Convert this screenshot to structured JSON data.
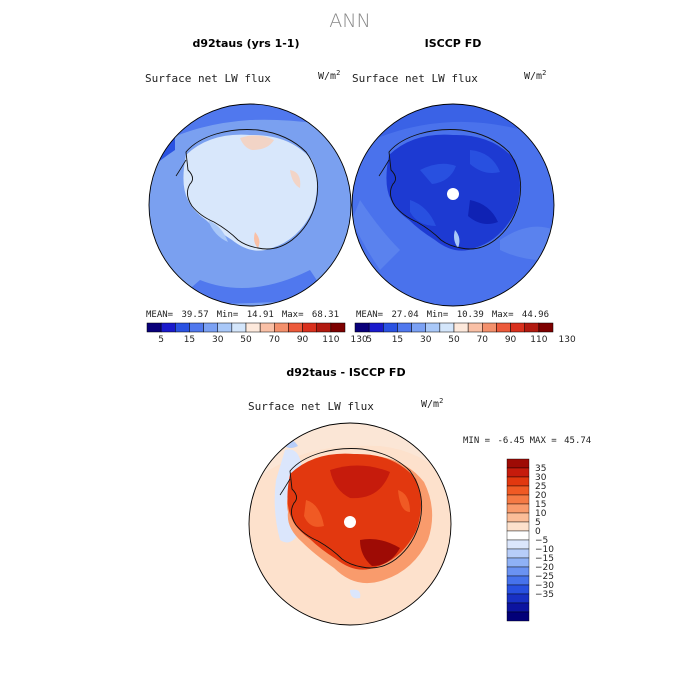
{
  "page": {
    "title": "ANN"
  },
  "panels": [
    {
      "key": "model",
      "title": "d92taus (yrs 1-1)",
      "variable": "Surface net LW flux",
      "units": "W/m",
      "units_exp": "2",
      "stats": {
        "mean_label": "MEAN=",
        "mean": "39.57",
        "min_label": "Min=",
        "min": "14.91",
        "max_label": "Max=",
        "max": "68.31"
      }
    },
    {
      "key": "obs",
      "title": "ISCCP FD",
      "variable": "Surface net LW flux",
      "units": "W/m",
      "units_exp": "2",
      "stats": {
        "mean_label": "MEAN=",
        "mean": "27.04",
        "min_label": "Min=",
        "min": "10.39",
        "max_label": "Max=",
        "max": "44.96"
      }
    },
    {
      "key": "diff",
      "title": "d92taus - ISCCP FD",
      "variable": "Surface net LW flux",
      "units": "W/m",
      "units_exp": "2",
      "stats": {
        "min_label": "MIN =",
        "min": "-6.45",
        "max_label": "MAX =",
        "max": "45.74"
      }
    }
  ],
  "chart_data": [
    {
      "type": "heatmap",
      "title": "d92taus (yrs 1-1)",
      "projection": "south-polar-stereographic",
      "variable": "Surface net LW flux",
      "units": "W/m2",
      "stats": {
        "mean": 39.57,
        "min": 14.91,
        "max": 68.31
      },
      "colorbar": {
        "orientation": "horizontal",
        "tick_labels": [
          "5",
          "15",
          "30",
          "50",
          "70",
          "90",
          "110",
          "130"
        ],
        "colors": [
          "#09007a",
          "#1a1acc",
          "#2a52e2",
          "#5078ee",
          "#7ba1f4",
          "#a9c8f8",
          "#d4e6fb",
          "#fde9dc",
          "#f9c0a6",
          "#f3906c",
          "#ec5a3b",
          "#d9301d",
          "#b21a10",
          "#7d0000"
        ]
      }
    },
    {
      "type": "heatmap",
      "title": "ISCCP FD",
      "projection": "south-polar-stereographic",
      "variable": "Surface net LW flux",
      "units": "W/m2",
      "stats": {
        "mean": 27.04,
        "min": 10.39,
        "max": 44.96
      },
      "colorbar": {
        "orientation": "horizontal",
        "tick_labels": [
          "5",
          "15",
          "30",
          "50",
          "70",
          "90",
          "110",
          "130"
        ],
        "colors": [
          "#09007a",
          "#1a1acc",
          "#2a52e2",
          "#5078ee",
          "#7ba1f4",
          "#a9c8f8",
          "#d4e6fb",
          "#fde9dc",
          "#f9c0a6",
          "#f3906c",
          "#ec5a3b",
          "#d9301d",
          "#b21a10",
          "#7d0000"
        ]
      }
    },
    {
      "type": "heatmap",
      "title": "d92taus - ISCCP FD",
      "projection": "south-polar-stereographic",
      "variable": "Surface net LW flux",
      "units": "W/m2",
      "stats": {
        "min": -6.45,
        "max": 45.74
      },
      "colorbar": {
        "orientation": "vertical",
        "tick_labels": [
          "35",
          "30",
          "25",
          "20",
          "15",
          "10",
          "5",
          "0",
          "−5",
          "−10",
          "−15",
          "−20",
          "−25",
          "−30",
          "−35"
        ],
        "colors": [
          "#9e0b05",
          "#c61b0c",
          "#e2380f",
          "#f05a24",
          "#f57a44",
          "#f99b6c",
          "#fbbd98",
          "#fde1cc",
          "#ffffff",
          "#dbe6fc",
          "#b7cdf9",
          "#8fb1f6",
          "#6a92f2",
          "#4672ec",
          "#2850e0",
          "#1830c4",
          "#0c14a0",
          "#020078"
        ]
      }
    }
  ]
}
